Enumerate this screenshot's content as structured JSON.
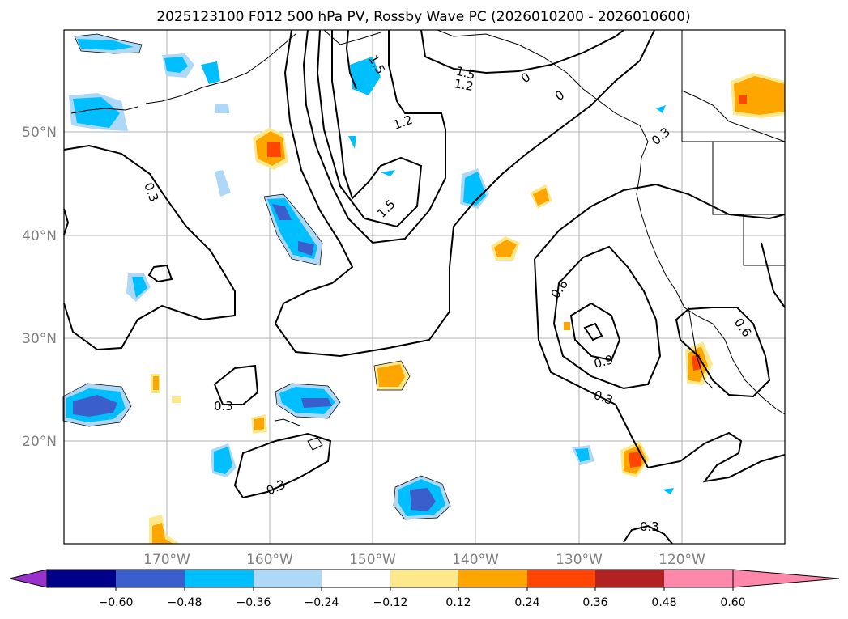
{
  "title": "2025123100 F012 500 hPa PV, Rossby Wave PC (2026010200 - 2026010600)",
  "map": {
    "lat_labels": [
      "50°N",
      "40°N",
      "30°N",
      "20°N"
    ],
    "lon_labels": [
      "170°W",
      "160°W",
      "150°W",
      "140°W",
      "130°W",
      "120°W"
    ],
    "contour_labels": [
      "1.5",
      "1.5",
      "1.2",
      "0",
      "0",
      "1.2",
      "0.3",
      "1.5",
      "0.6",
      "0.9",
      "0.3",
      "0.3",
      "0.3",
      "0.3",
      "0.3",
      "0.6"
    ]
  },
  "colorbar": {
    "ticks": [
      "−0.60",
      "−0.48",
      "−0.36",
      "−0.24",
      "−0.12",
      "0.12",
      "0.24",
      "0.36",
      "0.48",
      "0.60"
    ],
    "colors": [
      "#9932cc",
      "#00008b",
      "#3a5fcd",
      "#00bfff",
      "#add8f7",
      "#ffffff",
      "#fde98b",
      "#ffa500",
      "#ff4500",
      "#b22222",
      "#ff88aa"
    ]
  }
}
